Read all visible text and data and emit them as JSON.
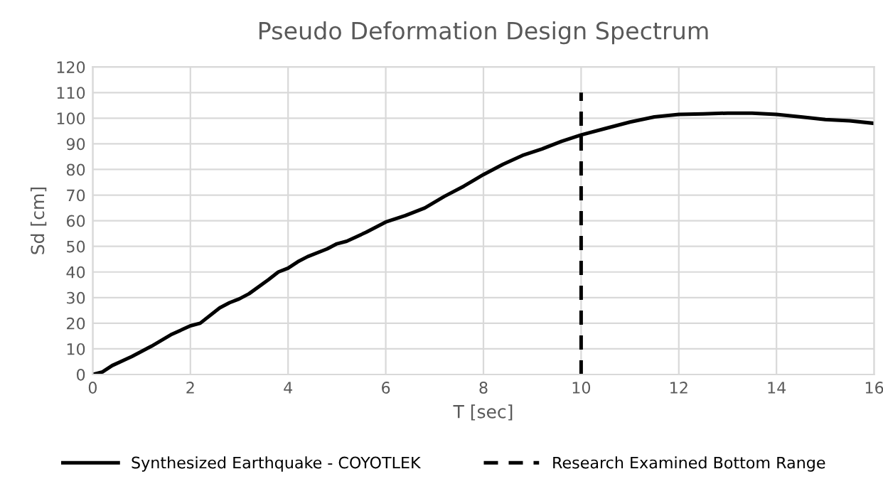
{
  "chart_data": {
    "type": "line",
    "title": "Pseudo Deformation Design Spectrum",
    "xlabel": "T [sec]",
    "ylabel": "Sd [cm]",
    "series": [
      {
        "name": "Synthesized Earthquake - COYOTLEK",
        "color": "#000000",
        "line_style": "solid",
        "x": [
          0,
          0.2,
          0.4,
          0.8,
          1.2,
          1.6,
          2.0,
          2.2,
          2.6,
          2.8,
          3.0,
          3.2,
          3.6,
          3.8,
          4.0,
          4.2,
          4.4,
          4.8,
          5.0,
          5.2,
          5.6,
          6.0,
          6.4,
          6.8,
          7.2,
          7.6,
          8.0,
          8.4,
          8.8,
          9.2,
          9.6,
          10,
          10.5,
          11,
          11.5,
          12,
          12.5,
          13,
          13.5,
          14,
          14.5,
          15,
          15.5,
          16
        ],
        "values": [
          0,
          1,
          3.5,
          7,
          11,
          15.5,
          19,
          20,
          26,
          28,
          29.5,
          31.5,
          37,
          40,
          41.5,
          44,
          46,
          49,
          51,
          52,
          55.5,
          59.5,
          62,
          65,
          69.5,
          73.5,
          78,
          82,
          85.5,
          88,
          91,
          93.5,
          96,
          98.5,
          100.5,
          101.5,
          101.7,
          102,
          102,
          101.5,
          100.5,
          99.5,
          99,
          98
        ]
      },
      {
        "name": "Research Examined Bottom Range",
        "color": "#000000",
        "line_style": "dashed",
        "x": [
          10,
          10
        ],
        "values": [
          0,
          110
        ]
      }
    ],
    "xlim": [
      0,
      16
    ],
    "xticks": [
      0,
      2,
      4,
      6,
      8,
      10,
      12,
      14,
      16
    ],
    "ylim": [
      0,
      120
    ],
    "yticks": [
      0,
      10,
      20,
      30,
      40,
      50,
      60,
      70,
      80,
      90,
      100,
      110,
      120
    ],
    "grid": true,
    "legend": "bottom",
    "marker": "none"
  }
}
